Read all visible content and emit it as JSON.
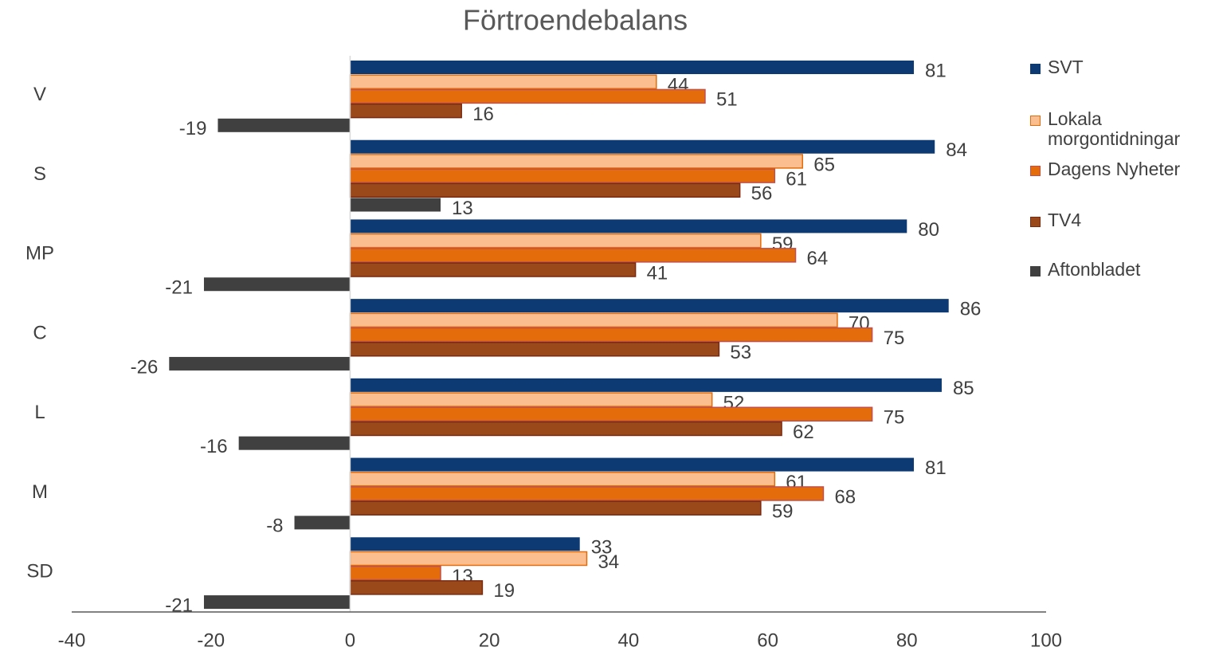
{
  "chart_data": {
    "type": "bar",
    "orientation": "horizontal",
    "title": "Förtroendebalans",
    "categories": [
      "V",
      "S",
      "MP",
      "C",
      "L",
      "M",
      "SD"
    ],
    "series": [
      {
        "name": "SVT",
        "color": "#0e3a73",
        "values": [
          81,
          84,
          80,
          86,
          85,
          81,
          33
        ]
      },
      {
        "name": "Lokala morgontidningar",
        "color": "#fbbf8f",
        "values": [
          44,
          65,
          59,
          70,
          52,
          61,
          34
        ]
      },
      {
        "name": "Dagens Nyheter",
        "color": "#e46c0a",
        "values": [
          51,
          61,
          64,
          75,
          75,
          68,
          13
        ]
      },
      {
        "name": "TV4",
        "color": "#99491a",
        "values": [
          16,
          56,
          41,
          53,
          62,
          59,
          19
        ]
      },
      {
        "name": "Aftonbladet",
        "color": "#404040",
        "values": [
          -19,
          13,
          -21,
          -26,
          -16,
          -8,
          -21
        ]
      }
    ],
    "xlim": [
      -40,
      100
    ],
    "xticks": [
      -40,
      -20,
      0,
      20,
      40,
      60,
      80,
      100
    ],
    "legend": "right"
  }
}
